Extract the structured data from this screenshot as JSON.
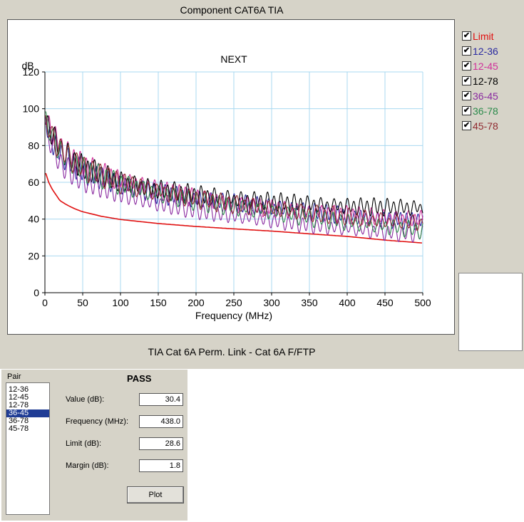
{
  "window_title": "Component CAT6A TIA",
  "footer_caption": "TIA Cat 6A Perm. Link - Cat 6A F/FTP",
  "chart_data": {
    "type": "line",
    "title": "NEXT",
    "ylabel": "dB",
    "xlabel": "Frequency (MHz)",
    "xlim": [
      0,
      500
    ],
    "ylim": [
      0,
      120
    ],
    "x_ticks": [
      "0",
      "50",
      "100",
      "150",
      "200",
      "250",
      "300",
      "350",
      "400",
      "450",
      "500"
    ],
    "y_ticks": [
      "0",
      "20",
      "40",
      "60",
      "80",
      "100",
      "120"
    ],
    "grid": true,
    "legend_position": "right",
    "series": [
      {
        "name": "Limit",
        "color": "#e01010",
        "x": [
          1,
          5,
          10,
          20,
          30,
          40,
          50,
          75,
          100,
          150,
          200,
          250,
          300,
          350,
          400,
          450,
          500
        ],
        "y": [
          65,
          60,
          56,
          50,
          47.5,
          45.5,
          44,
          41.5,
          39.8,
          37.6,
          36,
          34.7,
          33.5,
          32,
          30.6,
          28.6,
          27
        ]
      },
      {
        "name": "12-36",
        "color": "#2a2aa0",
        "x": [
          1,
          10,
          25,
          50,
          100,
          150,
          200,
          250,
          300,
          350,
          400,
          450,
          500
        ],
        "y": [
          92,
          82,
          74,
          66,
          59,
          54,
          51,
          48.5,
          46,
          44,
          42,
          40,
          39
        ]
      },
      {
        "name": "12-45",
        "color": "#d0309a",
        "x": [
          1,
          10,
          25,
          50,
          100,
          150,
          200,
          250,
          300,
          350,
          400,
          450,
          500
        ],
        "y": [
          97,
          86,
          77,
          69,
          61,
          56,
          52,
          48.5,
          46,
          44,
          42.5,
          41,
          40
        ]
      },
      {
        "name": "12-78",
        "color": "#000000",
        "x": [
          1,
          10,
          25,
          50,
          100,
          150,
          200,
          250,
          300,
          350,
          400,
          450,
          500
        ],
        "y": [
          95,
          85,
          76,
          68,
          60,
          56,
          53,
          51,
          49.5,
          48,
          47,
          46.5,
          46
        ]
      },
      {
        "name": "36-45",
        "color": "#8a2aa0",
        "x": [
          1,
          10,
          25,
          50,
          100,
          150,
          200,
          250,
          300,
          350,
          400,
          450,
          500
        ],
        "y": [
          90,
          78,
          68,
          61,
          54,
          48.5,
          45,
          42,
          39.5,
          37,
          35,
          33,
          32
        ]
      },
      {
        "name": "36-78",
        "color": "#2a8a4a",
        "x": [
          1,
          10,
          25,
          50,
          100,
          150,
          200,
          250,
          300,
          350,
          400,
          450,
          500
        ],
        "y": [
          94,
          83,
          75,
          67,
          59,
          54,
          50,
          47,
          44,
          41,
          38.5,
          36,
          34
        ]
      },
      {
        "name": "45-78",
        "color": "#902a30",
        "x": [
          1,
          10,
          25,
          50,
          100,
          150,
          200,
          250,
          300,
          350,
          400,
          450,
          500
        ],
        "y": [
          93,
          84,
          76,
          68,
          60,
          55,
          51,
          48,
          45.5,
          43,
          41,
          39,
          37.5
        ]
      }
    ]
  },
  "legend": {
    "items": [
      {
        "label": "Limit",
        "color": "#e01010",
        "checked": true
      },
      {
        "label": "12-36",
        "color": "#2a2aa0",
        "checked": true
      },
      {
        "label": "12-45",
        "color": "#d0309a",
        "checked": true
      },
      {
        "label": "12-78",
        "color": "#000000",
        "checked": true
      },
      {
        "label": "36-45",
        "color": "#8a2aa0",
        "checked": true
      },
      {
        "label": "36-78",
        "color": "#2a8a4a",
        "checked": true
      },
      {
        "label": "45-78",
        "color": "#902a30",
        "checked": true
      }
    ]
  },
  "results": {
    "pair_label": "Pair",
    "pairs": [
      "12-36",
      "12-45",
      "12-78",
      "36-45",
      "36-78",
      "45-78"
    ],
    "selected_pair": "36-45",
    "status": "PASS",
    "value_label": "Value (dB):",
    "value": "30.4",
    "frequency_label": "Frequency (MHz):",
    "frequency": "438.0",
    "limit_label": "Limit (dB):",
    "limit": "28.6",
    "margin_label": "Margin (dB):",
    "margin": "1.8",
    "plot_button": "Plot"
  }
}
